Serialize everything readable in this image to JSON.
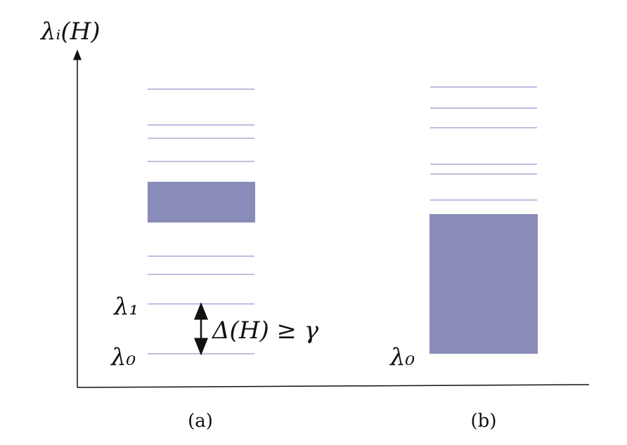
{
  "axis_label": "λᵢ(H)",
  "panels": [
    {
      "label": "(a)",
      "level_labels": [
        "λ₁",
        "λ₀"
      ],
      "gap_annotation": "Δ(H) ≥ γ"
    },
    {
      "label": "(b)",
      "level_labels": [
        "λ₀"
      ]
    }
  ]
}
